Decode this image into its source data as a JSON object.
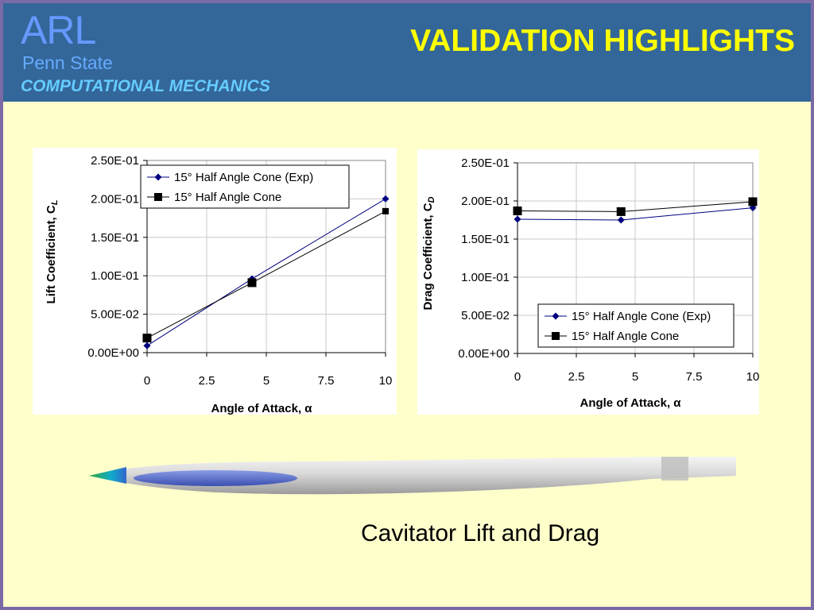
{
  "header": {
    "logo_main": "ARL",
    "logo_sub": "Penn State",
    "logo_dept": "COMPUTATIONAL MECHANICS",
    "title": "VALIDATION HIGHLIGHTS"
  },
  "colors": {
    "slide_background": "#ffffcc",
    "header_background": "#336699",
    "title": "#ffff00",
    "series_exp": "#000080",
    "series_cfd": "#000000"
  },
  "caption": "Cavitator Lift and Drag",
  "chart_data": [
    {
      "type": "line",
      "id": "lift",
      "title": "",
      "xlabel": "Angle of Attack, α",
      "ylabel": "Lift Coefficient, C",
      "ylabel_subscript": "L",
      "xlim": [
        0,
        10
      ],
      "ylim": [
        0,
        0.25
      ],
      "x_ticks": [
        "0",
        "2.5",
        "5",
        "7.5",
        "10"
      ],
      "y_ticks": [
        "0.00E+00",
        "5.00E-02",
        "1.00E-01",
        "1.50E-01",
        "2.00E-01",
        "2.50E-01"
      ],
      "grid": true,
      "legend": "top-left",
      "series": [
        {
          "name": "15° Half Angle Cone (Exp)",
          "marker": "diamond",
          "color": "#000080",
          "x": [
            0,
            4.4,
            10
          ],
          "values": [
            0.009,
            0.096,
            0.2
          ]
        },
        {
          "name": "15° Half Angle Cone",
          "marker": "square",
          "color": "#000000",
          "x": [
            0,
            4.4,
            10
          ],
          "values": [
            0.019,
            0.091,
            0.184
          ]
        }
      ]
    },
    {
      "type": "line",
      "id": "drag",
      "title": "",
      "xlabel": "Angle of Attack, α",
      "ylabel": "Drag Coefficient, C",
      "ylabel_subscript": "D",
      "xlim": [
        0,
        10
      ],
      "ylim": [
        0,
        0.25
      ],
      "x_ticks": [
        "0",
        "2.5",
        "5",
        "7.5",
        "10"
      ],
      "y_ticks": [
        "0.00E+00",
        "5.00E-02",
        "1.00E-01",
        "1.50E-01",
        "2.00E-01",
        "2.50E-01"
      ],
      "grid": true,
      "legend": "bottom-center",
      "series": [
        {
          "name": "15° Half Angle Cone (Exp)",
          "marker": "diamond",
          "color": "#000080",
          "x": [
            0,
            4.4,
            10
          ],
          "values": [
            0.176,
            0.175,
            0.191
          ]
        },
        {
          "name": "15° Half Angle Cone",
          "marker": "square",
          "color": "#000000",
          "x": [
            0,
            4.4,
            10
          ],
          "values": [
            0.187,
            0.186,
            0.199
          ]
        }
      ]
    }
  ]
}
